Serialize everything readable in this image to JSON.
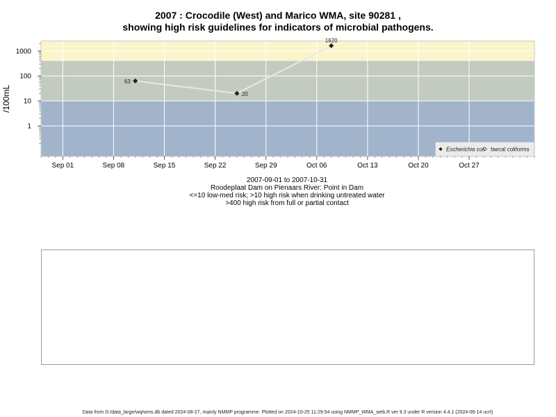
{
  "chart_data": {
    "type": "line",
    "title": "2007 : Crocodile (West) and Marico WMA, site 90281 ,",
    "subtitle": "showing high risk guidelines for indicators of microbial pathogens.",
    "ylabel": "/100mL",
    "yscale": "log",
    "ylim": [
      0.06,
      2500
    ],
    "yticks": [
      "1",
      "10",
      "100",
      "1000"
    ],
    "x_range": [
      "2007-08-29",
      "2007-11-05"
    ],
    "xticks": [
      {
        "date": "2007-09-01",
        "label": "Sep 01"
      },
      {
        "date": "2007-09-08",
        "label": "Sep 08"
      },
      {
        "date": "2007-09-15",
        "label": "Sep 15"
      },
      {
        "date": "2007-09-22",
        "label": "Sep 22"
      },
      {
        "date": "2007-09-29",
        "label": "Sep 29"
      },
      {
        "date": "2007-10-06",
        "label": "Oct 06"
      },
      {
        "date": "2007-10-13",
        "label": "Oct 13"
      },
      {
        "date": "2007-10-20",
        "label": "Oct 20"
      },
      {
        "date": "2007-10-27",
        "label": "Oct 27"
      }
    ],
    "bands": [
      {
        "from": 0.06,
        "to": 10,
        "color": "#a2b4cb"
      },
      {
        "from": 10,
        "to": 400,
        "color": "#c3cbc0"
      },
      {
        "from": 400,
        "to": 2500,
        "color": "#fbf5cb"
      }
    ],
    "grid": true,
    "legend_position": "bottom-right",
    "series": [
      {
        "name": "Escherichia coli",
        "marker": "filled-diamond",
        "points": [
          {
            "x": "2007-09-11",
            "y": 63,
            "label": "63"
          },
          {
            "x": "2007-09-25",
            "y": 20,
            "label": "20"
          },
          {
            "x": "2007-10-08",
            "y": 1620,
            "label": "1620"
          }
        ]
      },
      {
        "name": "faecal coliforms",
        "marker": "open-diamond",
        "points": []
      }
    ],
    "line_color": "#e8e8e8"
  },
  "info": {
    "date_range": "2007-09-01 to 2007-10-31",
    "site": "Roodeplaat Dam on Pienaars River: Point in Dam",
    "guideline1": "<=10 low-med risk; >10 high risk when drinking untreated water",
    "guideline2": ">400 high risk from full or partial contact"
  },
  "footer": "Data from D:/data_large/wq/wms.db dated 2024-08-27, mainly NMMP programme. Plotted on 2024-10-25 11:29:54 using NMMP_WMA_web.R ver 9.3 under R version 4.4.1 (2024-06-14 ucrt)"
}
